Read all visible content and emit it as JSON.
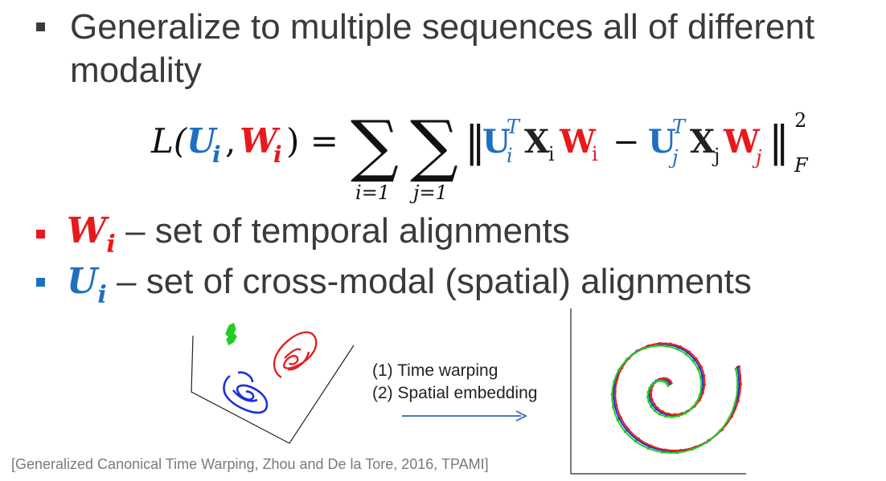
{
  "bullets": {
    "main": {
      "text_line1": "Generalize to multiple sequences all of different",
      "text_line2": "modality",
      "color": "#3a3a3a"
    },
    "w": {
      "symbol": "W",
      "subscript": "i",
      "text": "– set of temporal alignments",
      "color": "#e8191c"
    },
    "u": {
      "symbol": "U",
      "subscript": "i",
      "text": "– set of cross-modal (spatial) alignments",
      "color": "#1f6fc0"
    }
  },
  "equation": {
    "lhs": "L(",
    "lhs_u": "U",
    "lhs_u_sub": "i",
    "comma": ",",
    "lhs_w": "W",
    "lhs_w_sub": "i",
    "rhs_open": ") =",
    "sum_sign": "∑",
    "sum_i": "i=1",
    "sum_j": "j=1",
    "norm_open": "‖",
    "u": "U",
    "u_sup": "T",
    "u_sub_i": "i",
    "x": "X",
    "x_sub_i": "i",
    "w": "W",
    "w_sub_i": "i",
    "minus": "−",
    "u_sub_j": "j",
    "x_sub_j": "j",
    "w_sub_j": "j",
    "norm_close": "‖",
    "power": "2",
    "frob": "F"
  },
  "figure": {
    "arrow_label_1": "(1) Time warping",
    "arrow_label_2": "(2) Spatial embedding"
  },
  "citation": "[Generalized Canonical Time Warping, Zhou and De la Tore, 2016, TPAMI]"
}
